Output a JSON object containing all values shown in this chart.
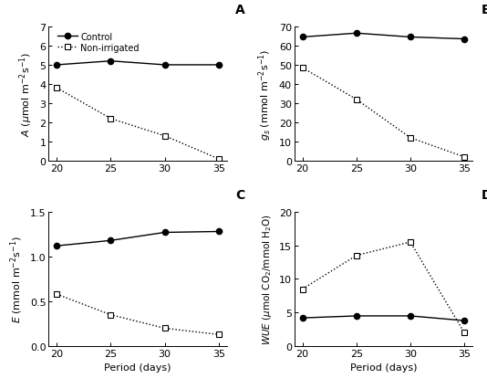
{
  "x": [
    20,
    25,
    30,
    35
  ],
  "A_control": [
    5.0,
    5.2,
    5.0,
    5.0
  ],
  "A_nonirr": [
    3.8,
    2.2,
    1.3,
    0.1
  ],
  "gs_control": [
    64.5,
    66.5,
    64.5,
    63.5
  ],
  "gs_nonirr": [
    48.5,
    32.0,
    12.0,
    2.0
  ],
  "E_control": [
    1.12,
    1.18,
    1.27,
    1.28
  ],
  "E_nonirr": [
    0.58,
    0.35,
    0.2,
    0.13
  ],
  "WUE_control": [
    4.2,
    4.5,
    4.5,
    3.8
  ],
  "WUE_nonirr": [
    8.5,
    13.5,
    15.5,
    2.0
  ],
  "A_ylim": [
    0,
    7
  ],
  "A_yticks": [
    0,
    1,
    2,
    3,
    4,
    5,
    6,
    7
  ],
  "gs_ylim": [
    0,
    70
  ],
  "gs_yticks": [
    0,
    10,
    20,
    30,
    40,
    50,
    60,
    70
  ],
  "E_ylim": [
    0,
    1.5
  ],
  "E_yticks": [
    0,
    0.5,
    1.0,
    1.5
  ],
  "WUE_ylim": [
    0,
    20
  ],
  "WUE_yticks": [
    0,
    5,
    10,
    15,
    20
  ],
  "xlabel": "Period (days)",
  "legend_control": "Control",
  "legend_nonirr": "Non-irrigated",
  "panel_labels": [
    "A",
    "B",
    "C",
    "D"
  ],
  "line_color": "#000000",
  "bg_color": "#ffffff",
  "fontsize": 8,
  "marker_control": "o",
  "marker_nonirr": "s",
  "xticks": [
    20,
    25,
    30,
    35
  ]
}
